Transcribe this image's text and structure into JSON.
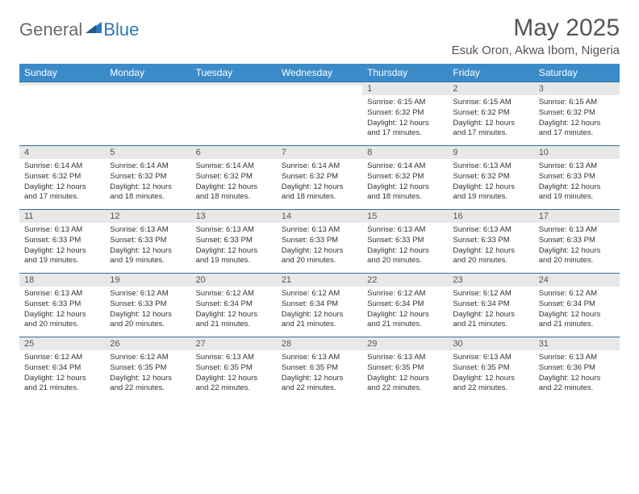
{
  "brand": {
    "part1": "General",
    "part2": "Blue"
  },
  "title": "May 2025",
  "location": "Esuk Oron, Akwa Ibom, Nigeria",
  "colors": {
    "header_bg": "#3b8bc9",
    "header_text": "#ffffff",
    "row_border": "#2f6fa3",
    "daynum_bg": "#e8e8e8",
    "text": "#333333",
    "brand_gray": "#6a6a6a",
    "brand_blue": "#2b77b8",
    "title_color": "#555555"
  },
  "day_headers": [
    "Sunday",
    "Monday",
    "Tuesday",
    "Wednesday",
    "Thursday",
    "Friday",
    "Saturday"
  ],
  "weeks": [
    [
      {
        "num": "",
        "lines": [
          "",
          "",
          "",
          ""
        ]
      },
      {
        "num": "",
        "lines": [
          "",
          "",
          "",
          ""
        ]
      },
      {
        "num": "",
        "lines": [
          "",
          "",
          "",
          ""
        ]
      },
      {
        "num": "",
        "lines": [
          "",
          "",
          "",
          ""
        ]
      },
      {
        "num": "1",
        "lines": [
          "Sunrise: 6:15 AM",
          "Sunset: 6:32 PM",
          "Daylight: 12 hours",
          "and 17 minutes."
        ]
      },
      {
        "num": "2",
        "lines": [
          "Sunrise: 6:15 AM",
          "Sunset: 6:32 PM",
          "Daylight: 12 hours",
          "and 17 minutes."
        ]
      },
      {
        "num": "3",
        "lines": [
          "Sunrise: 6:15 AM",
          "Sunset: 6:32 PM",
          "Daylight: 12 hours",
          "and 17 minutes."
        ]
      }
    ],
    [
      {
        "num": "4",
        "lines": [
          "Sunrise: 6:14 AM",
          "Sunset: 6:32 PM",
          "Daylight: 12 hours",
          "and 17 minutes."
        ]
      },
      {
        "num": "5",
        "lines": [
          "Sunrise: 6:14 AM",
          "Sunset: 6:32 PM",
          "Daylight: 12 hours",
          "and 18 minutes."
        ]
      },
      {
        "num": "6",
        "lines": [
          "Sunrise: 6:14 AM",
          "Sunset: 6:32 PM",
          "Daylight: 12 hours",
          "and 18 minutes."
        ]
      },
      {
        "num": "7",
        "lines": [
          "Sunrise: 6:14 AM",
          "Sunset: 6:32 PM",
          "Daylight: 12 hours",
          "and 18 minutes."
        ]
      },
      {
        "num": "8",
        "lines": [
          "Sunrise: 6:14 AM",
          "Sunset: 6:32 PM",
          "Daylight: 12 hours",
          "and 18 minutes."
        ]
      },
      {
        "num": "9",
        "lines": [
          "Sunrise: 6:13 AM",
          "Sunset: 6:32 PM",
          "Daylight: 12 hours",
          "and 19 minutes."
        ]
      },
      {
        "num": "10",
        "lines": [
          "Sunrise: 6:13 AM",
          "Sunset: 6:33 PM",
          "Daylight: 12 hours",
          "and 19 minutes."
        ]
      }
    ],
    [
      {
        "num": "11",
        "lines": [
          "Sunrise: 6:13 AM",
          "Sunset: 6:33 PM",
          "Daylight: 12 hours",
          "and 19 minutes."
        ]
      },
      {
        "num": "12",
        "lines": [
          "Sunrise: 6:13 AM",
          "Sunset: 6:33 PM",
          "Daylight: 12 hours",
          "and 19 minutes."
        ]
      },
      {
        "num": "13",
        "lines": [
          "Sunrise: 6:13 AM",
          "Sunset: 6:33 PM",
          "Daylight: 12 hours",
          "and 19 minutes."
        ]
      },
      {
        "num": "14",
        "lines": [
          "Sunrise: 6:13 AM",
          "Sunset: 6:33 PM",
          "Daylight: 12 hours",
          "and 20 minutes."
        ]
      },
      {
        "num": "15",
        "lines": [
          "Sunrise: 6:13 AM",
          "Sunset: 6:33 PM",
          "Daylight: 12 hours",
          "and 20 minutes."
        ]
      },
      {
        "num": "16",
        "lines": [
          "Sunrise: 6:13 AM",
          "Sunset: 6:33 PM",
          "Daylight: 12 hours",
          "and 20 minutes."
        ]
      },
      {
        "num": "17",
        "lines": [
          "Sunrise: 6:13 AM",
          "Sunset: 6:33 PM",
          "Daylight: 12 hours",
          "and 20 minutes."
        ]
      }
    ],
    [
      {
        "num": "18",
        "lines": [
          "Sunrise: 6:13 AM",
          "Sunset: 6:33 PM",
          "Daylight: 12 hours",
          "and 20 minutes."
        ]
      },
      {
        "num": "19",
        "lines": [
          "Sunrise: 6:12 AM",
          "Sunset: 6:33 PM",
          "Daylight: 12 hours",
          "and 20 minutes."
        ]
      },
      {
        "num": "20",
        "lines": [
          "Sunrise: 6:12 AM",
          "Sunset: 6:34 PM",
          "Daylight: 12 hours",
          "and 21 minutes."
        ]
      },
      {
        "num": "21",
        "lines": [
          "Sunrise: 6:12 AM",
          "Sunset: 6:34 PM",
          "Daylight: 12 hours",
          "and 21 minutes."
        ]
      },
      {
        "num": "22",
        "lines": [
          "Sunrise: 6:12 AM",
          "Sunset: 6:34 PM",
          "Daylight: 12 hours",
          "and 21 minutes."
        ]
      },
      {
        "num": "23",
        "lines": [
          "Sunrise: 6:12 AM",
          "Sunset: 6:34 PM",
          "Daylight: 12 hours",
          "and 21 minutes."
        ]
      },
      {
        "num": "24",
        "lines": [
          "Sunrise: 6:12 AM",
          "Sunset: 6:34 PM",
          "Daylight: 12 hours",
          "and 21 minutes."
        ]
      }
    ],
    [
      {
        "num": "25",
        "lines": [
          "Sunrise: 6:12 AM",
          "Sunset: 6:34 PM",
          "Daylight: 12 hours",
          "and 21 minutes."
        ]
      },
      {
        "num": "26",
        "lines": [
          "Sunrise: 6:12 AM",
          "Sunset: 6:35 PM",
          "Daylight: 12 hours",
          "and 22 minutes."
        ]
      },
      {
        "num": "27",
        "lines": [
          "Sunrise: 6:13 AM",
          "Sunset: 6:35 PM",
          "Daylight: 12 hours",
          "and 22 minutes."
        ]
      },
      {
        "num": "28",
        "lines": [
          "Sunrise: 6:13 AM",
          "Sunset: 6:35 PM",
          "Daylight: 12 hours",
          "and 22 minutes."
        ]
      },
      {
        "num": "29",
        "lines": [
          "Sunrise: 6:13 AM",
          "Sunset: 6:35 PM",
          "Daylight: 12 hours",
          "and 22 minutes."
        ]
      },
      {
        "num": "30",
        "lines": [
          "Sunrise: 6:13 AM",
          "Sunset: 6:35 PM",
          "Daylight: 12 hours",
          "and 22 minutes."
        ]
      },
      {
        "num": "31",
        "lines": [
          "Sunrise: 6:13 AM",
          "Sunset: 6:36 PM",
          "Daylight: 12 hours",
          "and 22 minutes."
        ]
      }
    ]
  ]
}
